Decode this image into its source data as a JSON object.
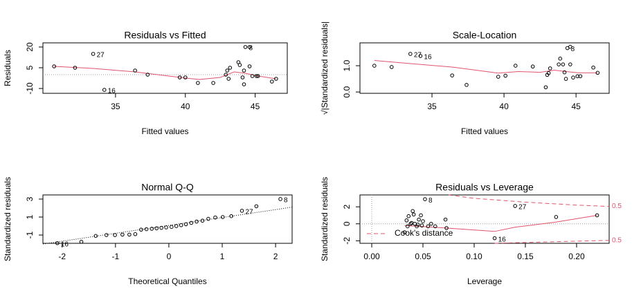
{
  "chart_data": [
    {
      "type": "scatter",
      "title": "Residuals vs Fitted",
      "xlabel": "Fitted values",
      "ylabel": "Residuals",
      "x": [
        30.6,
        32.1,
        33.4,
        34.2,
        36.4,
        37.3,
        39.6,
        40.0,
        40.9,
        42.0,
        42.9,
        43.0,
        43.1,
        43.2,
        43.8,
        43.9,
        44.1,
        44.2,
        44.2,
        44.3,
        44.6,
        44.6,
        44.8,
        45.1,
        45.2,
        46.2,
        46.5
      ],
      "values": [
        6,
        5,
        15,
        -11,
        3,
        0,
        -2,
        -2,
        -6,
        -6,
        0,
        3,
        -3,
        5,
        9,
        7,
        -2,
        3,
        -7,
        20,
        20,
        6,
        -1,
        -1,
        -1,
        -5,
        -3
      ],
      "point_labels": [
        null,
        null,
        "27",
        "16",
        null,
        null,
        null,
        null,
        null,
        null,
        null,
        null,
        null,
        null,
        null,
        null,
        null,
        null,
        null,
        "8",
        null,
        null,
        null,
        null,
        null,
        null,
        null
      ],
      "xlim": [
        29.8,
        47.3
      ],
      "ylim": [
        -13.5,
        23
      ],
      "xticks": [
        35,
        40,
        45
      ],
      "yticks": [
        -10,
        5,
        20
      ],
      "hlines": [
        0
      ],
      "smooth": {
        "color": "#df536b",
        "x": [
          30.6,
          33.4,
          36.4,
          39.6,
          41.0,
          42.5,
          43.5,
          44.3,
          45.2,
          46.5
        ],
        "y": [
          6,
          4.5,
          2,
          -2,
          -3.5,
          -2,
          2,
          1,
          -1,
          -3
        ]
      }
    },
    {
      "type": "scatter",
      "title": "Scale-Location",
      "xlabel": "Fitted values",
      "ylabel": "√|Standardized residuals|",
      "x": [
        31.0,
        32.2,
        33.5,
        34.2,
        36.4,
        37.4,
        39.6,
        40.1,
        40.8,
        42.0,
        42.9,
        43.0,
        43.1,
        43.2,
        43.8,
        43.9,
        44.1,
        44.2,
        44.3,
        44.4,
        44.6,
        44.6,
        44.8,
        45.1,
        45.3,
        46.2,
        46.5
      ],
      "values": [
        1.0,
        0.95,
        1.45,
        1.37,
        0.63,
        0.27,
        0.58,
        0.62,
        1.0,
        0.97,
        0.18,
        0.65,
        0.72,
        0.9,
        1.05,
        1.27,
        1.05,
        0.75,
        0.5,
        1.67,
        1.72,
        1.05,
        0.55,
        0.6,
        0.6,
        0.93,
        0.73
      ],
      "point_labels": [
        null,
        null,
        "27",
        "16",
        null,
        null,
        null,
        null,
        null,
        null,
        null,
        null,
        null,
        null,
        null,
        null,
        null,
        null,
        null,
        "8",
        null,
        null,
        null,
        null,
        null,
        null,
        null
      ],
      "xlim": [
        30.0,
        47.3
      ],
      "ylim": [
        -0.05,
        1.87
      ],
      "xticks": [
        35,
        40,
        45
      ],
      "yticks": [
        {
          "value": 0,
          "label": "0.0"
        },
        {
          "value": 1,
          "label": "1.0"
        }
      ],
      "smooth": {
        "color": "#df536b",
        "x": [
          31.0,
          33.5,
          36.4,
          39.6,
          41.0,
          42.5,
          43.5,
          44.3,
          45.2,
          46.5
        ],
        "y": [
          1.2,
          1.08,
          0.95,
          0.72,
          0.78,
          0.75,
          0.83,
          0.78,
          0.73,
          0.73
        ]
      }
    },
    {
      "type": "scatter",
      "title": "Normal Q-Q",
      "xlabel": "Theoretical Quantiles",
      "ylabel": "Standardized residuals",
      "x": [
        -2.09,
        -1.64,
        -1.37,
        -1.17,
        -1.01,
        -0.87,
        -0.74,
        -0.63,
        -0.52,
        -0.42,
        -0.32,
        -0.23,
        -0.14,
        -0.05,
        0.05,
        0.14,
        0.23,
        0.32,
        0.42,
        0.52,
        0.63,
        0.74,
        0.87,
        1.01,
        1.17,
        1.37,
        1.64,
        2.09
      ],
      "values": [
        -1.9,
        -1.75,
        -1.1,
        -1.0,
        -1.0,
        -0.95,
        -0.95,
        -0.9,
        -0.4,
        -0.35,
        -0.3,
        -0.25,
        -0.2,
        -0.15,
        -0.1,
        0.0,
        0.1,
        0.2,
        0.35,
        0.5,
        0.6,
        0.8,
        0.95,
        1.0,
        1.1,
        1.7,
        2.2,
        3.0
      ],
      "point_labels": [
        "16",
        null,
        null,
        null,
        null,
        null,
        null,
        null,
        null,
        null,
        null,
        null,
        null,
        null,
        null,
        null,
        null,
        null,
        null,
        null,
        null,
        null,
        null,
        null,
        null,
        "27",
        null,
        "8"
      ],
      "xlim": [
        -2.36,
        2.31
      ],
      "ylim": [
        -1.92,
        3.46
      ],
      "xticks": [
        -2,
        -1,
        0,
        1,
        2
      ],
      "yticks": [
        -1,
        1,
        3
      ],
      "qq_line": {
        "x": [
          -2.36,
          2.31
        ],
        "y": [
          -2.0,
          2.1
        ]
      }
    },
    {
      "type": "scatter",
      "title": "Residuals vs Leverage",
      "xlabel": "Leverage",
      "ylabel": "Standardized residuals",
      "x": [
        0.032,
        0.034,
        0.035,
        0.036,
        0.038,
        0.039,
        0.04,
        0.041,
        0.042,
        0.044,
        0.045,
        0.046,
        0.048,
        0.049,
        0.05,
        0.052,
        0.055,
        0.058,
        0.062,
        0.072,
        0.073,
        0.12,
        0.14,
        0.18,
        0.22
      ],
      "values": [
        -1.0,
        0.4,
        -0.3,
        0.9,
        0.0,
        0.1,
        1.5,
        1.1,
        0.0,
        -0.3,
        -0.1,
        0.5,
        1.0,
        -0.2,
        0.3,
        2.9,
        -0.3,
        0.0,
        -0.3,
        0.5,
        -0.5,
        -1.7,
        2.1,
        0.8,
        1.0
      ],
      "point_labels": [
        null,
        null,
        null,
        null,
        null,
        null,
        null,
        null,
        null,
        null,
        null,
        null,
        null,
        null,
        null,
        "8",
        null,
        null,
        null,
        null,
        null,
        "16",
        "27",
        null,
        null
      ],
      "xlim": [
        -0.0115,
        0.2318
      ],
      "ylim": [
        -2.3,
        3.4
      ],
      "xticks": [
        {
          "value": 0,
          "label": "0.00"
        },
        {
          "value": 0.05,
          "label": "0.05"
        },
        {
          "value": 0.1,
          "label": "0.10"
        },
        {
          "value": 0.15,
          "label": "0.15"
        },
        {
          "value": 0.2,
          "label": "0.20"
        }
      ],
      "yticks": [
        -2,
        0,
        2
      ],
      "hlines": [
        0
      ],
      "vlines": [
        0
      ],
      "smooth": {
        "color": "#df536b",
        "x": [
          0.032,
          0.06,
          0.12,
          0.14,
          0.18,
          0.22
        ],
        "y": [
          -0.2,
          -0.4,
          -0.9,
          -0.4,
          0.2,
          1.0
        ]
      },
      "legend": "Cook's distance",
      "cook_color": "#df536b",
      "cook_lines": [
        {
          "label": "0.5",
          "x": [
            0.075,
            0.1,
            0.15,
            0.2,
            0.2318
          ],
          "y": [
            3.4,
            3.0,
            2.55,
            2.2,
            2.05
          ]
        },
        {
          "label": "0.5",
          "x": [
            0.12,
            0.15,
            0.2,
            0.2318
          ],
          "y": [
            -2.3,
            -2.2,
            -2.05,
            -1.95
          ]
        }
      ]
    }
  ]
}
